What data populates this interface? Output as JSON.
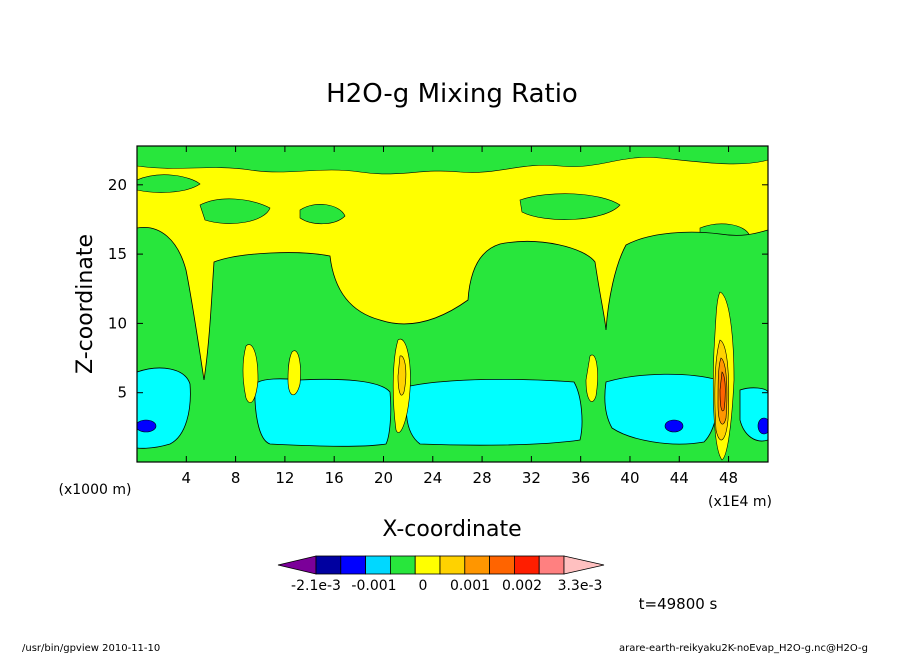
{
  "chart_data": {
    "type": "heatmap",
    "title": "H2O-g Mixing Ratio",
    "xlabel": "X-coordinate",
    "ylabel": "Z-coordinate",
    "x_unit_left": "(x1000 m)",
    "x_unit_right": "(x1E4 m)",
    "xlim": [
      0,
      51.2
    ],
    "ylim": [
      0,
      22.8
    ],
    "xticks": [
      4,
      8,
      12,
      16,
      20,
      24,
      28,
      32,
      36,
      40,
      44,
      48
    ],
    "yticks": [
      5,
      10,
      15,
      20
    ],
    "time_label": "t=49800 s",
    "colorbar": {
      "colors": [
        "#7b0099",
        "#0000a0",
        "#0000ff",
        "#00d8ff",
        "#28e63c",
        "#ffff00",
        "#ffd200",
        "#ff9600",
        "#ff6400",
        "#ff1e00",
        "#ff8080",
        "#ffc0c0"
      ],
      "labels": [
        "-2.1e-3",
        "-0.001",
        "0",
        "0.001",
        "0.002",
        "3.3e-3"
      ]
    },
    "contour_levels": [
      "cyan",
      "green",
      "yellow",
      "gold",
      "orange",
      "red",
      "blue"
    ]
  },
  "footer": {
    "left": "/usr/bin/gpview   2010-11-10",
    "right": "arare-earth-reikyaku2K-noEvap_H2O-g.nc@H2O-g"
  }
}
